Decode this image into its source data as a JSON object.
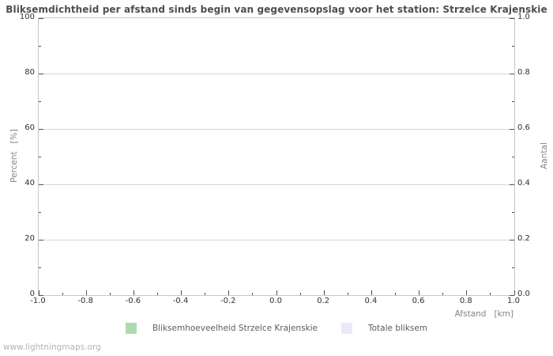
{
  "title": "Bliksemdichtheid per afstand sinds begin van gegevensopslag voor het station: Strzelce Krajenskie",
  "footer": "www.lightningmaps.org",
  "axes": {
    "x_label": "Afstand   [km]",
    "y_left_label": "Percent   [%]",
    "y_right_label": "Aantal"
  },
  "legend": {
    "items": [
      {
        "label": "Bliksemhoeveelheid Strzelce Krajenskie",
        "color": "#aedbae"
      },
      {
        "label": "Totale bliksem",
        "color": "#e9eaf7"
      }
    ]
  },
  "colors": {
    "title": "#4d4d4d",
    "gridline": "#d6d6d6",
    "plot_border": "#c6c6c6",
    "tick": "#4f4f4f",
    "tick_label": "#303030",
    "axis_label": "#858585",
    "footer": "#b3b3b3",
    "series_green": "#aedbae",
    "series_lavender": "#e9eaf7"
  },
  "chart_data": {
    "type": "bar",
    "title": "Bliksemdichtheid per afstand sinds begin van gegevensopslag voor het station: Strzelce Krajenskie",
    "xlabel": "Afstand [km]",
    "ylabel_left": "Percent [%]",
    "ylabel_right": "Aantal",
    "x_range": [
      -1.0,
      1.0
    ],
    "y_left_range": [
      0,
      100
    ],
    "y_right_range": [
      0.0,
      1.0
    ],
    "x_ticks": [
      "-1.0",
      "-0.8",
      "-0.6",
      "-0.4",
      "-0.2",
      "0.0",
      "0.2",
      "0.4",
      "0.6",
      "0.8",
      "1.0"
    ],
    "y_left_ticks": [
      "0",
      "20",
      "40",
      "60",
      "80",
      "100"
    ],
    "y_right_ticks": [
      "0.0",
      "0.2",
      "0.4",
      "0.6",
      "0.8",
      "1.0"
    ],
    "grid": "horizontal-major-only",
    "legend_position": "bottom-center",
    "series": [
      {
        "name": "Bliksemhoeveelheid Strzelce Krajenskie",
        "color": "#aedbae",
        "x": [],
        "values": []
      },
      {
        "name": "Totale bliksem",
        "color": "#e9eaf7",
        "x": [],
        "values": []
      }
    ]
  }
}
